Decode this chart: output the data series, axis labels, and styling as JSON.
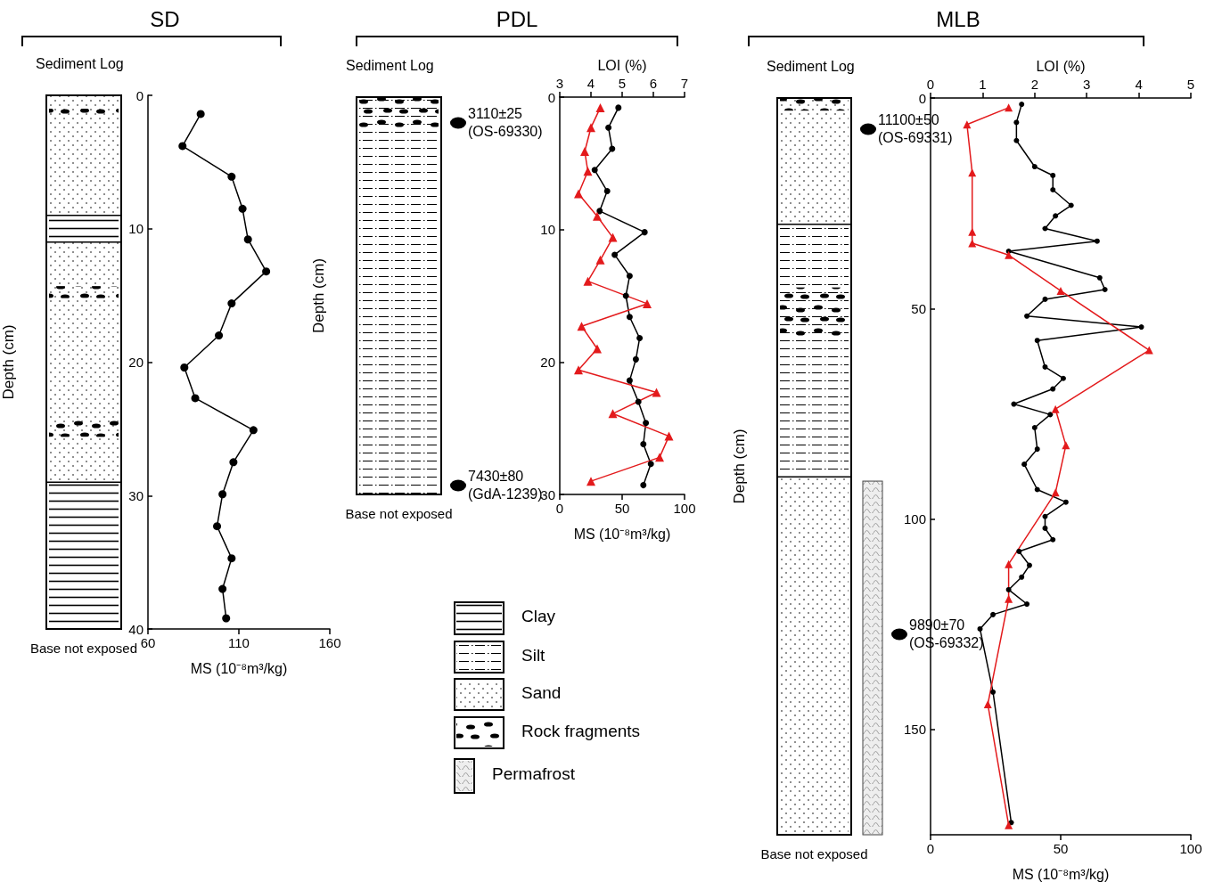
{
  "chart_data": [
    {
      "type": "line",
      "title": "SD",
      "xlabel": "MS (10⁻⁸m³/kg)",
      "ylabel": "Depth (cm)",
      "annotations": [
        "Sediment Log",
        "Base not exposed"
      ],
      "xlim": [
        60,
        160
      ],
      "xticks": [
        60,
        110,
        160
      ],
      "ylim": [
        40,
        0
      ],
      "yticks": [
        0,
        10,
        20,
        30,
        40
      ],
      "series": [
        {
          "color": "#000000",
          "marker": "circle",
          "x": [
            89,
            79,
            106,
            112,
            115,
            125,
            106,
            99,
            80,
            86,
            118,
            107,
            101,
            98,
            106,
            101,
            103
          ],
          "values": [
            1.4,
            3.8,
            6.1,
            8.5,
            10.8,
            13.2,
            15.6,
            18.0,
            20.4,
            22.7,
            25.1,
            27.5,
            29.9,
            32.3,
            34.7,
            37.0,
            39.2
          ]
        }
      ]
    },
    {
      "type": "line",
      "title": "PDL",
      "xlabel": "MS (10⁻⁸m³/kg)",
      "x2label": "LOI (%)",
      "ylabel": "Depth (cm)",
      "annotations": [
        "Sediment Log",
        "Base not exposed",
        "3110±25\n(OS-69330)",
        "7430±80\n(GdA-1239)",
        "Clay",
        "Silt",
        "Sand",
        "Rock fragments",
        "Permafrost"
      ],
      "xlim": [
        0,
        100
      ],
      "xticks": [
        0,
        50,
        100
      ],
      "x2lim": [
        3,
        7
      ],
      "x2ticks": [
        3,
        4,
        5,
        6,
        7
      ],
      "ylim": [
        30,
        0
      ],
      "yticks": [
        0,
        10,
        20,
        30
      ],
      "series": [
        {
          "color": "#000000",
          "marker": "circle",
          "x": [
            47,
            39,
            42,
            28,
            38,
            32,
            68,
            44,
            56,
            53,
            56,
            64,
            61,
            56,
            63,
            69,
            67,
            73,
            67
          ],
          "values": [
            0.8,
            2.3,
            3.9,
            5.5,
            7.1,
            8.6,
            10.2,
            11.9,
            13.5,
            15.0,
            16.6,
            18.2,
            19.8,
            21.4,
            23.0,
            24.6,
            26.2,
            27.7,
            29.3
          ]
        },
        {
          "color": "#e31a1c",
          "marker": "triangle",
          "axis": "x2",
          "x": [
            4.3,
            4.0,
            3.8,
            3.9,
            3.6,
            4.2,
            4.7,
            4.3,
            3.9,
            5.8,
            3.7,
            4.2,
            3.6,
            6.1,
            4.7,
            6.5,
            6.2,
            4.0
          ],
          "values": [
            0.8,
            2.3,
            4.1,
            5.6,
            7.3,
            9.0,
            10.6,
            12.3,
            13.9,
            15.6,
            17.3,
            19.0,
            20.6,
            22.3,
            23.9,
            25.6,
            27.2,
            29.0
          ]
        }
      ]
    },
    {
      "type": "line",
      "title": "MLB",
      "xlabel": "MS (10⁻⁸m³/kg)",
      "x2label": "LOI (%)",
      "ylabel": "Depth (cm)",
      "annotations": [
        "Sediment Log",
        "Base not exposed",
        "11100±50\n(OS-69331)",
        "9890±70\n(OS-69332)"
      ],
      "xlim": [
        0,
        100
      ],
      "xticks": [
        0,
        50,
        100
      ],
      "x2lim": [
        0,
        5
      ],
      "x2ticks": [
        0,
        1,
        2,
        3,
        4,
        5
      ],
      "ylim": [
        175,
        0
      ],
      "yticks": [
        0,
        50,
        100,
        150
      ],
      "series": [
        {
          "color": "#000000",
          "marker": "circle",
          "x": [
            35,
            33,
            33,
            40,
            47,
            47,
            54,
            48,
            44,
            64,
            30,
            65,
            67,
            44,
            37,
            81,
            41,
            44,
            51,
            47,
            32,
            46,
            40,
            41,
            36,
            41,
            52,
            44,
            44,
            47,
            34,
            38,
            35,
            30,
            37,
            24,
            19,
            24,
            31
          ],
          "values": [
            1.5,
            5.8,
            10.1,
            16.3,
            18.4,
            21.8,
            25.5,
            28.0,
            31.0,
            34.0,
            36.4,
            42.7,
            45.5,
            47.8,
            51.8,
            54.4,
            57.6,
            63.9,
            66.6,
            69.1,
            72.7,
            75.2,
            78.3,
            83.4,
            87.0,
            93.0,
            96.0,
            99.4,
            102.2,
            104.9,
            107.7,
            111.0,
            113.8,
            116.8,
            120.2,
            122.7,
            126.1,
            141.1,
            172.1
          ]
        },
        {
          "color": "#e31a1c",
          "marker": "triangle",
          "axis": "x2",
          "x": [
            1.5,
            0.7,
            0.8,
            0.8,
            0.8,
            1.5,
            2.5,
            4.2,
            2.4,
            2.6,
            2.4,
            1.5,
            1.5,
            1.1,
            1.5
          ],
          "values": [
            2.3,
            6.3,
            17.7,
            31.8,
            34.5,
            37.3,
            45.8,
            59.9,
            73.9,
            82.5,
            93.7,
            110.7,
            119.0,
            144.0,
            172.7
          ]
        }
      ]
    }
  ]
}
